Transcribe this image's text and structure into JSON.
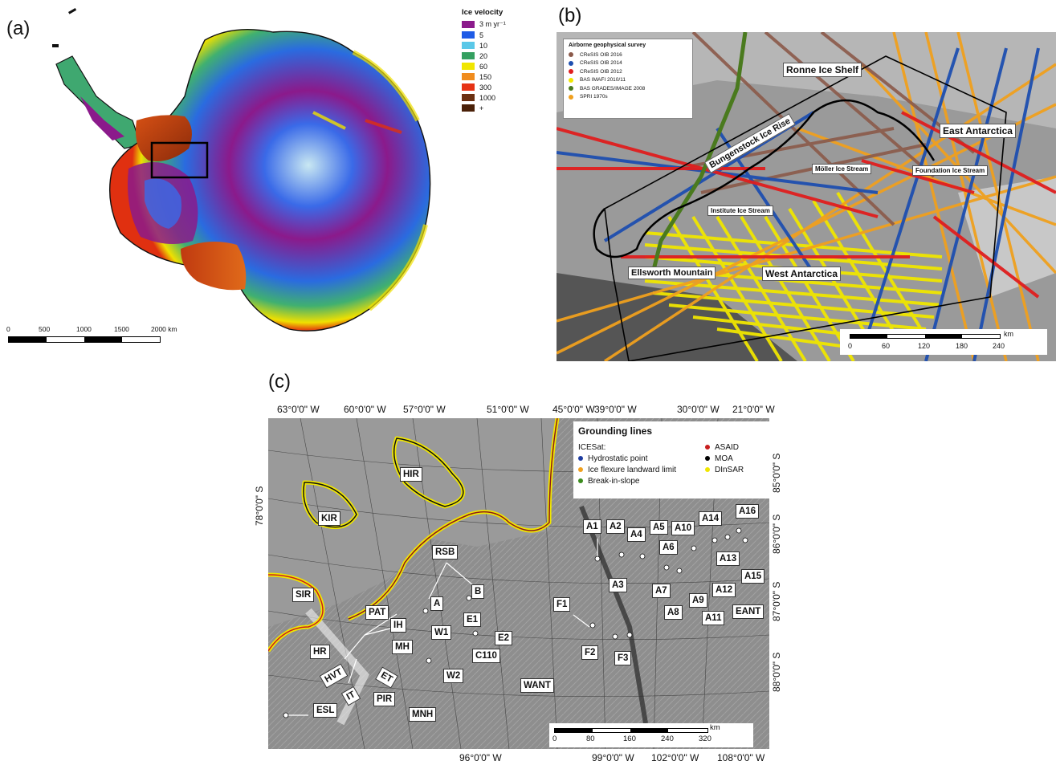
{
  "panels": {
    "a": "(a)",
    "b": "(b)",
    "c": "(c)"
  },
  "colors": {
    "purple": "#8b1a8b",
    "blue": "#1e5be6",
    "cyan": "#5bc8e8",
    "green": "#34a060",
    "yellow": "#f0e600",
    "orange": "#f08c1e",
    "red": "#e63214",
    "brown": "#6b3012",
    "dark_brown": "#4a2008"
  },
  "velocity_legend": {
    "title": "Ice velocity",
    "items": [
      {
        "label": "3 m yr⁻¹",
        "color": "#8b1a8b"
      },
      {
        "label": "5",
        "color": "#1e5be6"
      },
      {
        "label": "10",
        "color": "#5bc8e8"
      },
      {
        "label": "20",
        "color": "#34a060"
      },
      {
        "label": "60",
        "color": "#f0e600"
      },
      {
        "label": "150",
        "color": "#f08c1e"
      },
      {
        "label": "300",
        "color": "#e63214"
      },
      {
        "label": "1000",
        "color": "#6b3012"
      },
      {
        "label": "+",
        "color": "#4a2008"
      }
    ]
  },
  "scale_a": {
    "ticks": [
      "0",
      "500",
      "1000",
      "1500",
      "2000 km"
    ]
  },
  "survey_legend": {
    "title": "Airborne geophysical survey",
    "items": [
      {
        "label": "CReSIS OIB 2016",
        "color": "#8b5a4a"
      },
      {
        "label": "CReSIS OIB 2014",
        "color": "#1e4fb0"
      },
      {
        "label": "CReSIS OIB 2012",
        "color": "#e01e1e"
      },
      {
        "label": "BAS IMAFI 2010/11",
        "color": "#f0e600"
      },
      {
        "label": "BAS GRADES/IMAGE 2008",
        "color": "#4a7a1e"
      },
      {
        "label": "SPRI 1970s",
        "color": "#f0a01e"
      }
    ]
  },
  "panel_b_labels": {
    "ronne": "Ronne Ice Shelf",
    "east": "East Antarctica",
    "bungenstock": "Bungenstock Ice Rise",
    "moller": "Möller Ice Stream",
    "foundation": "Foundation Ice Stream",
    "institute": "Institute Ice Stream",
    "ellsworth": "Ellsworth Mountain",
    "west": "West Antarctica"
  },
  "scale_b": {
    "unit": "km",
    "ticks": [
      "0",
      "60",
      "120",
      "180",
      "240"
    ]
  },
  "panel_c": {
    "top_axis": [
      "63°0'0\" W",
      "60°0'0\" W",
      "57°0'0\" W",
      "51°0'0\" W",
      "45°0'0\" W",
      "39°0'0\" W",
      "30°0'0\" W",
      "21°0'0\" W"
    ],
    "bottom_axis": [
      "96°0'0\" W",
      "99°0'0\" W",
      "102°0'0\" W",
      "108°0'0\" W"
    ],
    "left_axis": [
      "78°0'0\" S"
    ],
    "right_axis": [
      "85°0'0\" S",
      "86°0'0\" S",
      "87°0'0\" S",
      "88°0'0\" S"
    ],
    "legend": {
      "title": "Grounding lines",
      "icesat": "ICESat:",
      "items_left": [
        {
          "label": "Hydrostatic point",
          "color": "#1e3ca0"
        },
        {
          "label": "Ice flexure landward limit",
          "color": "#f0a01e"
        },
        {
          "label": "Break-in-slope",
          "color": "#3c8c1e"
        }
      ],
      "items_right": [
        {
          "label": "ASAID",
          "color": "#c81e1e"
        },
        {
          "label": "MOA",
          "color": "#000000"
        },
        {
          "label": "DInSAR",
          "color": "#f0e600"
        }
      ]
    },
    "labels": {
      "HIR": "HIR",
      "KIR": "KIR",
      "SIR": "SIR",
      "RSB": "RSB",
      "A": "A",
      "B": "B",
      "PAT": "PAT",
      "IH": "IH",
      "MH": "MH",
      "HR": "HR",
      "HVT": "HVT",
      "IT": "IT",
      "ET": "ET",
      "PIR": "PIR",
      "ESL": "ESL",
      "MNH": "MNH",
      "W1": "W1",
      "W2": "W2",
      "E1": "E1",
      "E2": "E2",
      "C110": "C110",
      "WANT": "WANT",
      "F1": "F1",
      "F2": "F2",
      "F3": "F3",
      "A1": "A1",
      "A2": "A2",
      "A3": "A3",
      "A4": "A4",
      "A5": "A5",
      "A6": "A6",
      "A7": "A7",
      "A8": "A8",
      "A9": "A9",
      "A10": "A10",
      "A11": "A11",
      "A12": "A12",
      "A13": "A13",
      "A14": "A14",
      "A15": "A15",
      "A16": "A16",
      "EANT": "EANT"
    },
    "scale": {
      "unit": "km",
      "ticks": [
        "0",
        "80",
        "160",
        "240",
        "320"
      ]
    }
  }
}
